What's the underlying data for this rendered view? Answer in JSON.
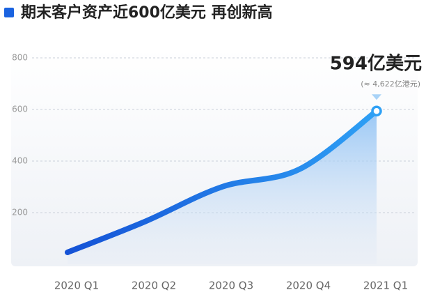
{
  "chart_data": {
    "type": "line",
    "title": "期末客户资产近600亿美元 再创新高",
    "categories": [
      "2020 Q1",
      "2020 Q2",
      "2020 Q3",
      "2020 Q4",
      "2021 Q1"
    ],
    "values": [
      46,
      165,
      300,
      368,
      594
    ],
    "value_labels": [
      null,
      null,
      null,
      null,
      "594亿美元"
    ],
    "annotation": "(≈ 4,622亿港元)",
    "color": "#1a63e0",
    "ylim": [
      0,
      800
    ],
    "yticks": [
      200,
      400,
      600,
      800
    ],
    "grid": true
  }
}
